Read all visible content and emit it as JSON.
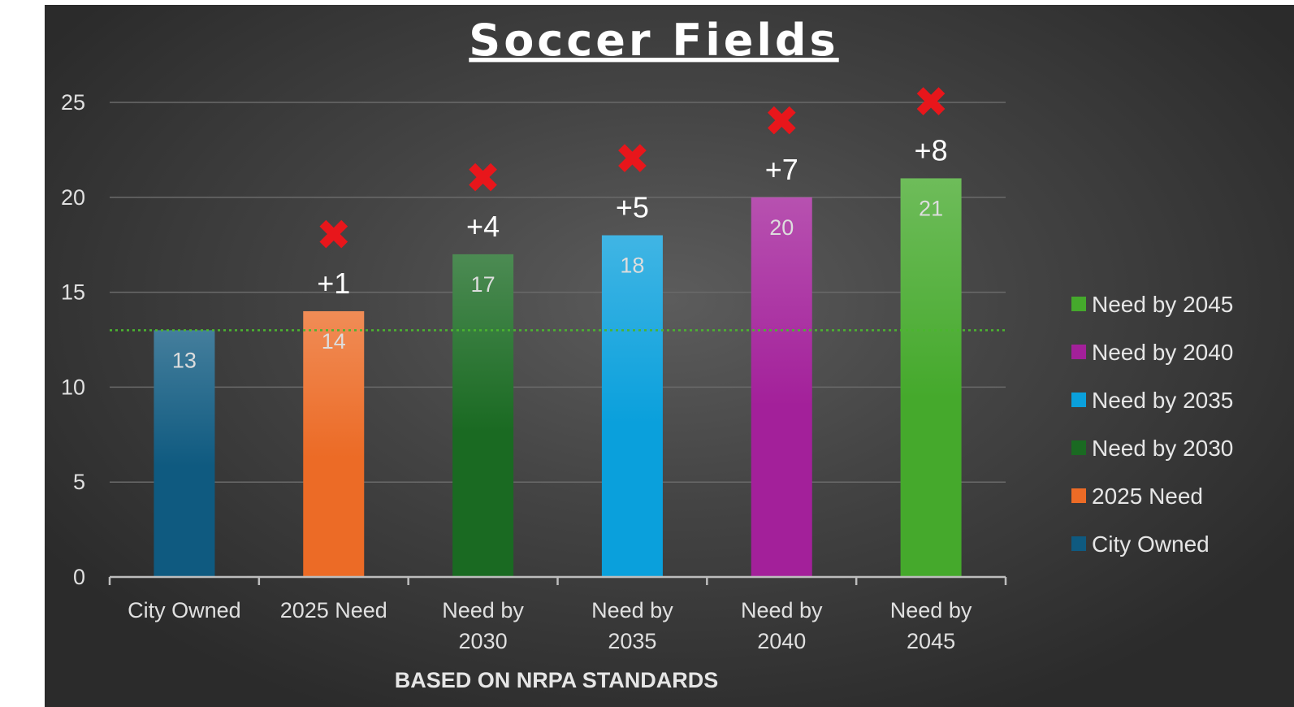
{
  "chart_data": {
    "type": "bar",
    "title": "Soccer Fields",
    "subtitle": "BASED ON NRPA STANDARDS",
    "categories": [
      "City Owned",
      "2025 Need",
      "Need by 2030",
      "Need by 2035",
      "Need by 2040",
      "Need by 2045"
    ],
    "category_lines": [
      [
        "City Owned"
      ],
      [
        "2025 Need"
      ],
      [
        "Need by",
        "2030"
      ],
      [
        "Need by",
        "2035"
      ],
      [
        "Need by",
        "2040"
      ],
      [
        "Need by",
        "2045"
      ]
    ],
    "values": [
      13,
      14,
      17,
      18,
      20,
      21
    ],
    "data_labels": [
      "13",
      "14",
      "17",
      "18",
      "20",
      "21"
    ],
    "deltas": [
      "",
      "+1",
      "+4",
      "+5",
      "+7",
      "+8"
    ],
    "deficit_marker": "✖",
    "colors": [
      "#0f5a80",
      "#ec6b26",
      "#1a6a22",
      "#0aa0dc",
      "#a3209a",
      "#45a92c"
    ],
    "ylim": [
      0,
      25
    ],
    "yticks": [
      "0",
      "5",
      "10",
      "15",
      "20",
      "25"
    ],
    "reference_line": {
      "value": 13,
      "color": "#4bb52f",
      "style": "dotted"
    },
    "grid": true,
    "legend": {
      "placement": "right",
      "items": [
        {
          "label": "Need by 2045",
          "color": "#45a92c"
        },
        {
          "label": "Need by 2040",
          "color": "#a3209a"
        },
        {
          "label": "Need by 2035",
          "color": "#0aa0dc"
        },
        {
          "label": "Need by 2030",
          "color": "#1a6a22"
        },
        {
          "label": "2025 Need",
          "color": "#ec6b26"
        },
        {
          "label": "City Owned",
          "color": "#0f5a80"
        }
      ]
    }
  }
}
